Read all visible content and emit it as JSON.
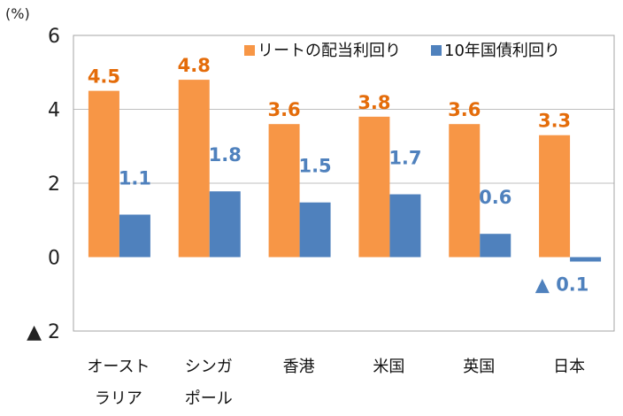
{
  "chart_data": {
    "type": "bar",
    "unit_label": "(%)",
    "categories": [
      [
        "オースト",
        "ラリア"
      ],
      [
        "シンガ",
        "ポール"
      ],
      [
        "香港"
      ],
      [
        "米国"
      ],
      [
        "英国"
      ],
      [
        "日本"
      ]
    ],
    "series": [
      {
        "name": "リートの配当利回り",
        "color": "#F79646",
        "label_color": "#E46C0A",
        "values": [
          4.5,
          4.8,
          3.6,
          3.8,
          3.6,
          3.3
        ],
        "labels": [
          "4.5",
          "4.8",
          "3.6",
          "3.8",
          "3.6",
          "3.3"
        ]
      },
      {
        "name": "10年国債利回り",
        "color": "#4F81BD",
        "label_color": "#4F81BD",
        "values": [
          1.15,
          1.78,
          1.48,
          1.7,
          0.63,
          -0.12
        ],
        "labels": [
          "1.1",
          "1.8",
          "1.5",
          "1.7",
          "0.6",
          "▲ 0.1"
        ]
      }
    ],
    "ylim": [
      -2,
      6
    ],
    "yticks": [
      6,
      4,
      2,
      0,
      -2
    ],
    "ytick_labels": [
      "6",
      "4",
      "2",
      "0",
      "▲ 2"
    ],
    "legend_position": "top-right",
    "grid": true
  }
}
